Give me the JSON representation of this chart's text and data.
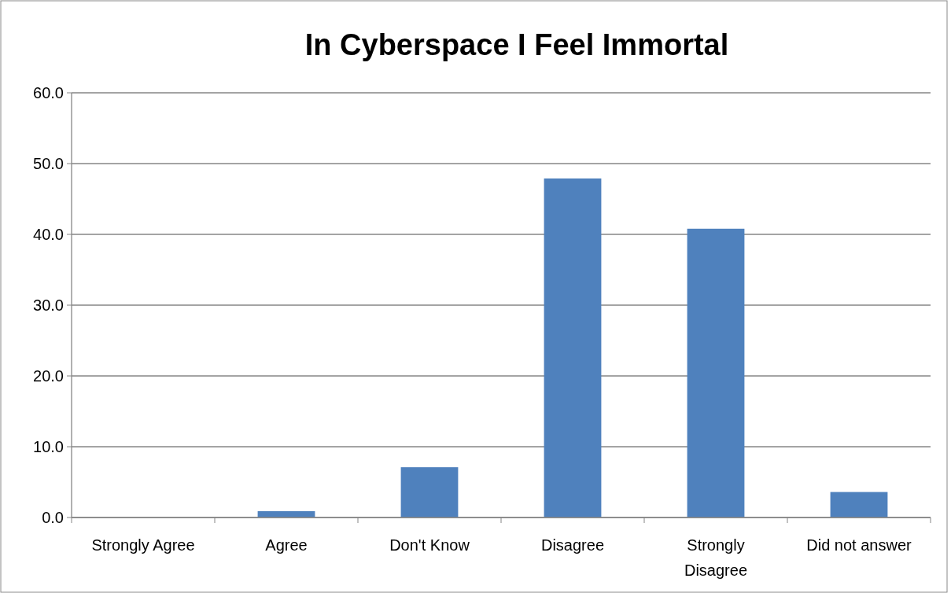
{
  "chart_data": {
    "type": "bar",
    "title": "In Cyberspace I Feel Immortal",
    "categories": [
      "Strongly Agree",
      "Agree",
      "Don't Know",
      "Disagree",
      "Strongly Disagree",
      "Did not answer"
    ],
    "values": [
      0,
      0.9,
      7.1,
      47.9,
      40.8,
      3.6
    ],
    "color": "#4f81bd",
    "ylim": [
      0,
      60
    ],
    "yticks": [
      {
        "value": 0,
        "label": "0.0"
      },
      {
        "value": 10,
        "label": "10.0"
      },
      {
        "value": 20,
        "label": "20.0"
      },
      {
        "value": 30,
        "label": "30.0"
      },
      {
        "value": 40,
        "label": "40.0"
      },
      {
        "value": 50,
        "label": "50.0"
      },
      {
        "value": 60,
        "label": "60.0"
      }
    ],
    "grid": "y"
  }
}
